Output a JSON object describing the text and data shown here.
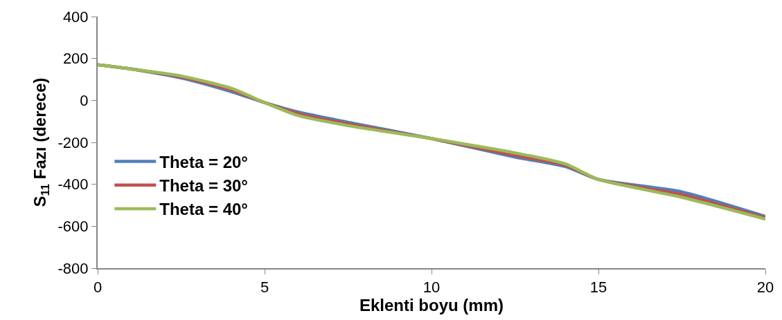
{
  "chart_data": {
    "type": "line",
    "xlabel": "Eklenti boyu (mm)",
    "ylabel": "S$_{11}$ Fazı (derece)",
    "x": [
      0,
      1,
      2.5,
      4,
      5,
      6,
      7.5,
      10,
      12.5,
      14,
      15,
      17.5,
      20
    ],
    "series": [
      {
        "name": "Theta = 20°",
        "color": "#4f81bd",
        "values": [
          170,
          150,
          107,
          42,
          -10,
          -55,
          -104,
          -182,
          -270,
          -315,
          -377,
          -436,
          -553
        ]
      },
      {
        "name": "Theta = 30°",
        "color": "#c0504d",
        "values": [
          170,
          150,
          112,
          50,
          -10,
          -62,
          -112,
          -182,
          -262,
          -308,
          -377,
          -449,
          -560
        ]
      },
      {
        "name": "Theta = 40°",
        "color": "#9bbb59",
        "values": [
          170,
          150,
          117,
          58,
          -10,
          -72,
          -120,
          -182,
          -250,
          -302,
          -377,
          -462,
          -566
        ]
      }
    ],
    "xlim": [
      0,
      20
    ],
    "xticks": [
      0,
      5,
      10,
      15,
      20
    ],
    "ylim": [
      -800,
      400
    ],
    "yticks": [
      -800,
      -600,
      -400,
      -200,
      0,
      200,
      400
    ],
    "grid": false,
    "legend": "left",
    "marker": "none",
    "line_style": "solid"
  }
}
